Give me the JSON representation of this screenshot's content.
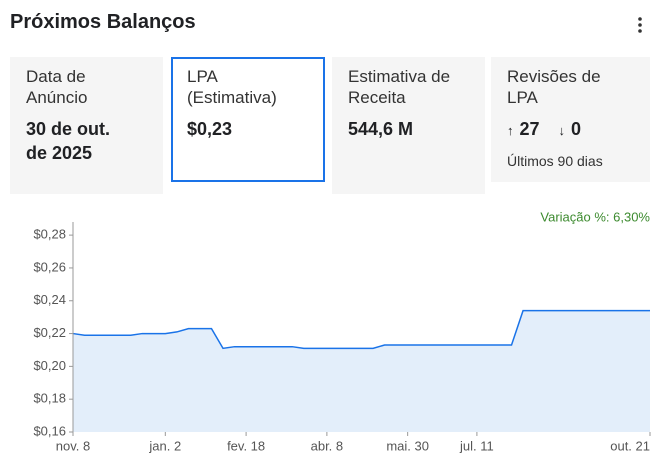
{
  "header": {
    "title": "Próximos Balanços"
  },
  "cards": [
    {
      "label": "Data de Anúncio",
      "value": "30 de out. de 2025"
    },
    {
      "label": "LPA (Estimativa)",
      "value": "$0,23"
    },
    {
      "label": "Estimativa de Receita",
      "value": "544,6 M"
    },
    {
      "label": "Revisões de LPA",
      "up": "27",
      "down": "0",
      "note": "Últimos 90 dias"
    }
  ],
  "chart_data": {
    "type": "area",
    "annotation": "Variação %: 6,30%",
    "color": "#1a73e8",
    "fill": "#e3eefa",
    "categories": [
      "nov. 8",
      null,
      null,
      null,
      null,
      null,
      null,
      null,
      "jan. 2",
      null,
      null,
      null,
      null,
      null,
      null,
      "fev. 18",
      null,
      null,
      null,
      null,
      null,
      null,
      "abr. 8",
      null,
      null,
      null,
      null,
      null,
      null,
      "mai. 30",
      null,
      null,
      null,
      null,
      null,
      "jul. 11",
      null,
      null,
      null,
      null,
      null,
      null,
      null,
      null,
      null,
      null,
      null,
      null,
      null,
      null,
      "out. 21"
    ],
    "values": [
      0.22,
      0.219,
      0.219,
      0.219,
      0.219,
      0.219,
      0.22,
      0.22,
      0.22,
      0.221,
      0.223,
      0.223,
      0.223,
      0.211,
      0.212,
      0.212,
      0.212,
      0.212,
      0.212,
      0.212,
      0.211,
      0.211,
      0.211,
      0.211,
      0.211,
      0.211,
      0.211,
      0.213,
      0.213,
      0.213,
      0.213,
      0.213,
      0.213,
      0.213,
      0.213,
      0.213,
      0.213,
      0.213,
      0.213,
      0.234,
      0.234,
      0.234,
      0.234,
      0.234,
      0.234,
      0.234,
      0.234,
      0.234,
      0.234,
      0.234,
      0.234
    ],
    "ylim": [
      0.16,
      0.288
    ],
    "yticks": [
      {
        "value": 0.16,
        "label": "$0,16"
      },
      {
        "value": 0.18,
        "label": "$0,18"
      },
      {
        "value": 0.2,
        "label": "$0,20"
      },
      {
        "value": 0.22,
        "label": "$0,22"
      },
      {
        "value": 0.24,
        "label": "$0,24"
      },
      {
        "value": 0.26,
        "label": "$0,26"
      },
      {
        "value": 0.28,
        "label": "$0,28"
      }
    ]
  }
}
